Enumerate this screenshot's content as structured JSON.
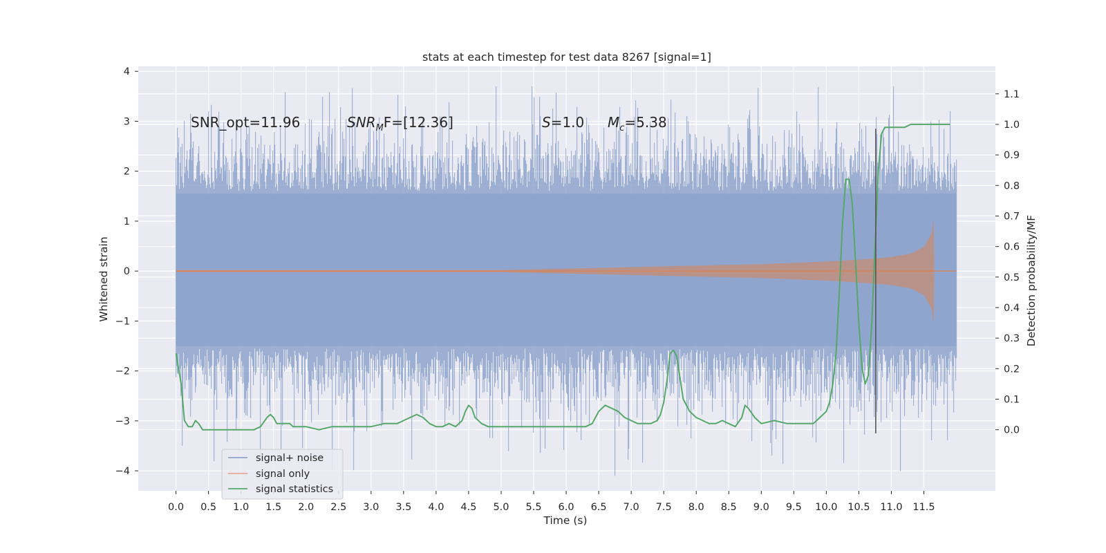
{
  "chart_data": {
    "type": "line",
    "title": "stats at each timestep for test data 8267 [signal=1]",
    "xlabel": "Time (s)",
    "ylabel": "Whitened strain",
    "ylabel_right": "Detection probability/MF",
    "xlim": [
      -0.58,
      12.6
    ],
    "ylim": [
      -4.4,
      4.1
    ],
    "ylim_right": [
      -0.2,
      1.19
    ],
    "x_ticks": [
      "0.0",
      "0.5",
      "1.0",
      "1.5",
      "2.0",
      "2.5",
      "3.0",
      "3.5",
      "4.0",
      "4.5",
      "5.0",
      "5.5",
      "6.0",
      "6.5",
      "7.0",
      "7.5",
      "8.0",
      "8.5",
      "9.0",
      "9.5",
      "10.0",
      "10.5",
      "11.0",
      "11.5"
    ],
    "y_ticks": [
      "4",
      "3",
      "2",
      "1",
      "0",
      "−1",
      "−2",
      "−3",
      "−4"
    ],
    "y_ticks_right": [
      "1.1",
      "1.0",
      "0.9",
      "0.8",
      "0.7",
      "0.6",
      "0.5",
      "0.4",
      "0.3",
      "0.2",
      "0.1",
      "0.0"
    ],
    "annotations": {
      "snr_opt": "SNR_opt=11.96",
      "snr_mf_main": "SNR",
      "snr_mf_sub": "M",
      "snr_mf_tail": "F=[12.36]",
      "s_var": "S",
      "s_val": "=1.0",
      "mc_var": "M",
      "mc_sub": "c",
      "mc_val": "=5.38"
    },
    "legend": [
      "signal+ noise",
      "signal only",
      "signal statistics"
    ],
    "colors": {
      "noise": "#8ea4cd",
      "signal": "#dd8452",
      "stats": "#55a868",
      "vline": "#555555",
      "grid_bg": "#eaeaf2"
    },
    "series": [
      {
        "name": "signal+ noise",
        "description": "whitened strain, approximately Gaussian noise with std ~0.85, spanning 0.0 to 12.0 s",
        "x_range": [
          0.0,
          12.0
        ],
        "peak_max": 3.7,
        "peak_min": -4.1
      },
      {
        "name": "signal only",
        "description": "chirp signal growing in amplitude until merger near 11.65 s",
        "merger_time": 11.65,
        "envelope": [
          [
            0.0,
            0.02
          ],
          [
            5.0,
            0.02
          ],
          [
            6.0,
            0.05
          ],
          [
            7.0,
            0.08
          ],
          [
            8.0,
            0.11
          ],
          [
            9.0,
            0.14
          ],
          [
            10.0,
            0.19
          ],
          [
            10.5,
            0.23
          ],
          [
            11.0,
            0.28
          ],
          [
            11.3,
            0.35
          ],
          [
            11.5,
            0.48
          ],
          [
            11.62,
            0.75
          ],
          [
            11.65,
            1.05
          ],
          [
            11.66,
            0.0
          ],
          [
            12.0,
            0.0
          ]
        ]
      },
      {
        "name": "signal statistics",
        "x": [
          0.0,
          0.08,
          0.13,
          0.19,
          0.25,
          0.3,
          0.35,
          0.41,
          0.47,
          0.52,
          0.6,
          0.7,
          0.8,
          0.9,
          1.0,
          1.1,
          1.2,
          1.3,
          1.4,
          1.45,
          1.5,
          1.55,
          1.6,
          1.65,
          1.7,
          1.75,
          1.8,
          1.9,
          2.0,
          2.2,
          2.4,
          2.6,
          2.8,
          3.0,
          3.2,
          3.4,
          3.5,
          3.6,
          3.7,
          3.8,
          3.9,
          4.0,
          4.1,
          4.2,
          4.3,
          4.4,
          4.45,
          4.5,
          4.55,
          4.6,
          4.7,
          4.8,
          5.0,
          5.2,
          5.4,
          5.5,
          5.6,
          5.8,
          6.0,
          6.2,
          6.3,
          6.4,
          6.5,
          6.6,
          6.7,
          6.8,
          6.9,
          7.0,
          7.1,
          7.2,
          7.3,
          7.4,
          7.45,
          7.5,
          7.55,
          7.6,
          7.65,
          7.7,
          7.75,
          7.8,
          7.9,
          8.0,
          8.1,
          8.2,
          8.3,
          8.4,
          8.5,
          8.6,
          8.7,
          8.75,
          8.8,
          8.9,
          9.0,
          9.2,
          9.4,
          9.6,
          9.8,
          9.9,
          10.0,
          10.05,
          10.1,
          10.15,
          10.2,
          10.25,
          10.3,
          10.35,
          10.4,
          10.45,
          10.5,
          10.55,
          10.6,
          10.65,
          10.7,
          10.75,
          10.8,
          10.85,
          10.9,
          10.95,
          11.0,
          11.1,
          11.2,
          11.3,
          11.4,
          11.5,
          11.6,
          11.7,
          11.8,
          11.9
        ],
        "values": [
          0.25,
          0.15,
          0.03,
          0.01,
          0.01,
          0.03,
          0.02,
          0.0,
          0.0,
          0.0,
          0.0,
          0.0,
          0.0,
          0.0,
          0.0,
          0.0,
          0.0,
          0.01,
          0.04,
          0.05,
          0.04,
          0.02,
          0.02,
          0.02,
          0.02,
          0.02,
          0.01,
          0.01,
          0.01,
          0.0,
          0.01,
          0.01,
          0.01,
          0.01,
          0.02,
          0.02,
          0.03,
          0.04,
          0.05,
          0.04,
          0.02,
          0.01,
          0.01,
          0.02,
          0.01,
          0.03,
          0.06,
          0.08,
          0.07,
          0.04,
          0.02,
          0.01,
          0.01,
          0.01,
          0.01,
          0.01,
          0.01,
          0.01,
          0.01,
          0.01,
          0.01,
          0.02,
          0.06,
          0.08,
          0.07,
          0.06,
          0.04,
          0.03,
          0.02,
          0.02,
          0.02,
          0.03,
          0.05,
          0.09,
          0.16,
          0.25,
          0.26,
          0.24,
          0.17,
          0.1,
          0.06,
          0.04,
          0.03,
          0.02,
          0.02,
          0.03,
          0.02,
          0.01,
          0.04,
          0.08,
          0.07,
          0.04,
          0.02,
          0.03,
          0.02,
          0.02,
          0.02,
          0.04,
          0.06,
          0.09,
          0.15,
          0.25,
          0.45,
          0.68,
          0.82,
          0.82,
          0.74,
          0.55,
          0.35,
          0.2,
          0.15,
          0.18,
          0.35,
          0.6,
          0.85,
          0.97,
          0.99,
          0.99,
          0.99,
          0.99,
          0.99,
          1.0,
          1.0,
          1.0,
          1.0,
          1.0,
          1.0,
          1.0
        ]
      }
    ],
    "vline": {
      "x": 10.76,
      "ymin": -3.25,
      "ymax": 2.85
    }
  }
}
